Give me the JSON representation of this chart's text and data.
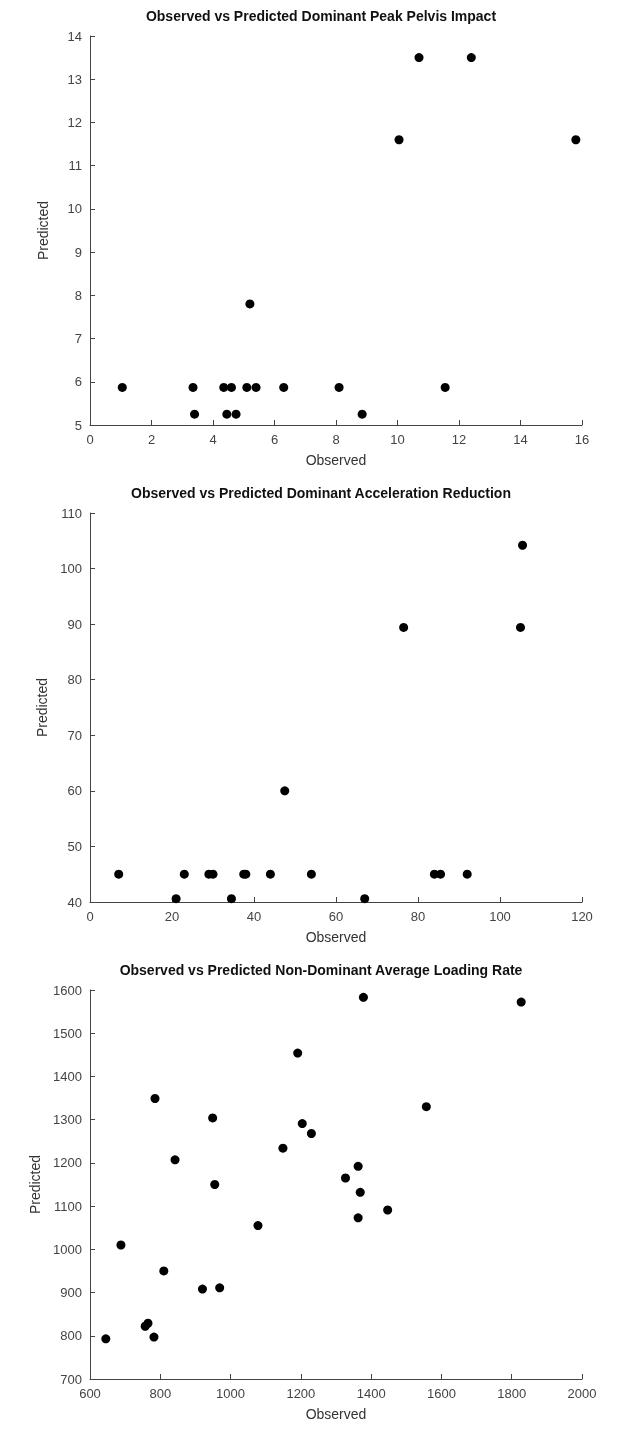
{
  "chart_data": [
    {
      "type": "scatter",
      "title": "Observed vs Predicted Dominant Peak Pelvis Impact",
      "xlabel": "Observed",
      "ylabel": "Predicted",
      "marker": "circle",
      "grid": false,
      "xlim": [
        0,
        16
      ],
      "xticks": [
        0,
        2,
        4,
        6,
        8,
        10,
        12,
        14,
        16
      ],
      "ylim": [
        5,
        14
      ],
      "yticks": [
        5,
        6,
        7,
        8,
        9,
        10,
        11,
        12,
        13,
        14
      ],
      "series": [
        {
          "color": "#000000",
          "x": [
            1.05,
            3.35,
            3.4,
            4.35,
            4.6,
            4.45,
            4.75,
            5.1,
            5.4,
            5.2,
            6.3,
            8.1,
            8.85,
            11.55,
            10.05,
            10.7,
            12.4,
            15.8
          ],
          "values": [
            5.87,
            5.87,
            5.25,
            5.87,
            5.87,
            5.25,
            5.25,
            5.87,
            5.87,
            7.8,
            5.87,
            5.87,
            5.25,
            5.87,
            11.6,
            13.5,
            13.5,
            11.6
          ]
        }
      ]
    },
    {
      "type": "scatter",
      "title": "Observed vs Predicted Dominant Acceleration Reduction",
      "xlabel": "Observed",
      "ylabel": "Predicted",
      "marker": "circle",
      "grid": false,
      "xlim": [
        0,
        120
      ],
      "xticks": [
        0,
        20,
        40,
        60,
        80,
        100,
        120
      ],
      "ylim": [
        40,
        110
      ],
      "yticks": [
        40,
        50,
        60,
        70,
        80,
        90,
        100,
        110
      ],
      "series": [
        {
          "color": "#000000",
          "x": [
            7,
            21,
            23,
            29,
            30,
            34.5,
            37.5,
            38,
            44,
            47.5,
            54,
            67,
            76.5,
            84,
            85.5,
            92,
            105,
            105.5
          ],
          "values": [
            45,
            40.6,
            45,
            45,
            45,
            40.6,
            45,
            45,
            45,
            60,
            45,
            40.6,
            89.4,
            45,
            45,
            45,
            89.4,
            104.2
          ]
        }
      ]
    },
    {
      "type": "scatter",
      "title": "Observed vs Predicted Non-Dominant Average Loading Rate",
      "xlabel": "Observed",
      "ylabel": "Predicted",
      "marker": "circle",
      "grid": false,
      "xlim": [
        600,
        2000
      ],
      "xticks": [
        600,
        800,
        1000,
        1200,
        1400,
        1600,
        1800,
        2000
      ],
      "ylim": [
        700,
        1600
      ],
      "yticks": [
        700,
        800,
        900,
        1000,
        1100,
        1200,
        1300,
        1400,
        1500,
        1600
      ],
      "series": [
        {
          "color": "#000000",
          "x": [
            645,
            688,
            757,
            765,
            782,
            785,
            810,
            842,
            920,
            949,
            955,
            969,
            1078,
            1149,
            1191,
            1204,
            1230,
            1327,
            1363,
            1363,
            1369,
            1378,
            1447,
            1557,
            1827
          ],
          "values": [
            793,
            1010,
            822,
            829,
            797,
            1349,
            950,
            1207,
            908,
            1304,
            1150,
            911,
            1055,
            1234,
            1454,
            1291,
            1268,
            1165,
            1192,
            1073,
            1132,
            1583,
            1091,
            1330,
            1572
          ]
        }
      ]
    }
  ]
}
